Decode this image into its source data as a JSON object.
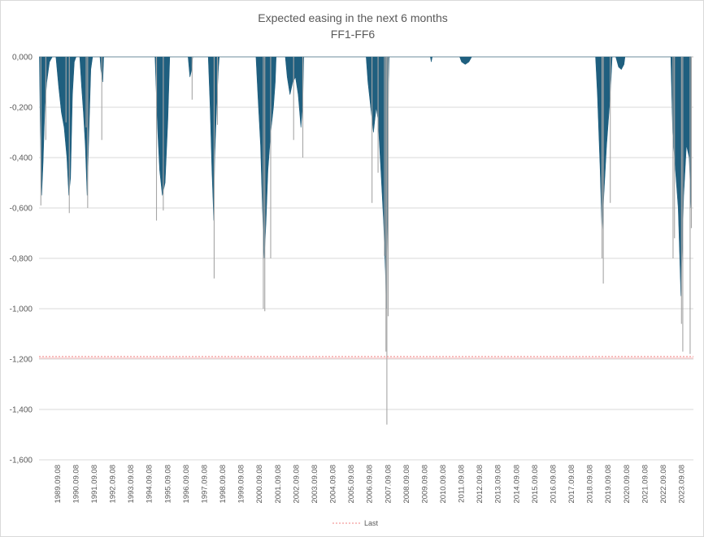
{
  "chart_data": {
    "type": "area",
    "title": "Expected easing in the next 6 months",
    "subtitle": "FF1-FF6",
    "xlabel": "",
    "ylabel": "",
    "ylim": [
      -1.6,
      0.0
    ],
    "grid": true,
    "legend_position": "bottom",
    "colors": {
      "area": "#1f5f7f",
      "spike": "#a6a6a6",
      "last": "#f4a6a6",
      "grid": "#d9d9d9"
    },
    "y_ticks": [
      "0,000",
      "-0,200",
      "-0,400",
      "-0,600",
      "-0,800",
      "-1,000",
      "-1,200",
      "-1,400",
      "-1,600"
    ],
    "x_ticks": [
      "1989.09.08",
      "1990.09.08",
      "1991.09.08",
      "1992.09.08",
      "1993.09.08",
      "1994.09.08",
      "1995.09.08",
      "1996.09.08",
      "1997.09.08",
      "1998.09.08",
      "1999.09.08",
      "2000.09.08",
      "2001.09.08",
      "2002.09.08",
      "2003.09.08",
      "2004.09.08",
      "2005.09.08",
      "2006.09.08",
      "2007.09.08",
      "2008.09.08",
      "2009.09.08",
      "2010.09.08",
      "2011.09.08",
      "2012.09.08",
      "2013.09.08",
      "2014.09.08",
      "2015.09.08",
      "2016.09.08",
      "2017.09.08",
      "2018.09.08",
      "2019.09.08",
      "2020.09.08",
      "2021.09.08",
      "2022.09.08",
      "2023.09.08"
    ],
    "series": [
      {
        "name": "",
        "kind": "area",
        "points": [
          [
            1988.7,
            0
          ],
          [
            1988.75,
            -0.3
          ],
          [
            1988.82,
            -0.55
          ],
          [
            1988.9,
            -0.42
          ],
          [
            1989.0,
            -0.2
          ],
          [
            1989.1,
            -0.1
          ],
          [
            1989.25,
            -0.02
          ],
          [
            1989.4,
            0
          ],
          [
            1989.6,
            0
          ],
          [
            1989.75,
            -0.12
          ],
          [
            1989.9,
            -0.22
          ],
          [
            1990.05,
            -0.28
          ],
          [
            1990.2,
            -0.4
          ],
          [
            1990.3,
            -0.55
          ],
          [
            1990.4,
            -0.48
          ],
          [
            1990.5,
            -0.15
          ],
          [
            1990.6,
            -0.02
          ],
          [
            1990.7,
            0
          ],
          [
            1990.9,
            0
          ],
          [
            1991.0,
            -0.12
          ],
          [
            1991.1,
            -0.22
          ],
          [
            1991.2,
            -0.35
          ],
          [
            1991.3,
            -0.55
          ],
          [
            1991.4,
            -0.3
          ],
          [
            1991.5,
            -0.05
          ],
          [
            1991.6,
            0
          ],
          [
            1992.0,
            0
          ],
          [
            1992.05,
            -0.05
          ],
          [
            1992.15,
            -0.1
          ],
          [
            1992.2,
            0
          ],
          [
            1995.0,
            0
          ],
          [
            1995.05,
            -0.1
          ],
          [
            1995.15,
            -0.3
          ],
          [
            1995.25,
            -0.45
          ],
          [
            1995.4,
            -0.55
          ],
          [
            1995.55,
            -0.5
          ],
          [
            1995.7,
            -0.25
          ],
          [
            1995.8,
            0
          ],
          [
            1996.8,
            0
          ],
          [
            1996.9,
            -0.08
          ],
          [
            1997.0,
            -0.05
          ],
          [
            1997.05,
            0
          ],
          [
            1997.9,
            0
          ],
          [
            1998.0,
            -0.2
          ],
          [
            1998.1,
            -0.45
          ],
          [
            1998.2,
            -0.65
          ],
          [
            1998.25,
            -0.4
          ],
          [
            1998.35,
            -0.2
          ],
          [
            1998.45,
            -0.05
          ],
          [
            1998.5,
            0
          ],
          [
            2000.5,
            0
          ],
          [
            2000.6,
            -0.15
          ],
          [
            2000.75,
            -0.35
          ],
          [
            2000.85,
            -0.6
          ],
          [
            2000.95,
            -0.8
          ],
          [
            2001.05,
            -0.65
          ],
          [
            2001.15,
            -0.45
          ],
          [
            2001.3,
            -0.3
          ],
          [
            2001.45,
            -0.2
          ],
          [
            2001.55,
            -0.1
          ],
          [
            2001.6,
            0
          ],
          [
            2002.1,
            0
          ],
          [
            2002.2,
            -0.08
          ],
          [
            2002.35,
            -0.15
          ],
          [
            2002.5,
            -0.1
          ],
          [
            2002.65,
            -0.08
          ],
          [
            2002.8,
            -0.15
          ],
          [
            2002.95,
            -0.28
          ],
          [
            2003.05,
            -0.18
          ],
          [
            2003.1,
            0
          ],
          [
            2006.5,
            0
          ],
          [
            2006.6,
            -0.1
          ],
          [
            2006.75,
            -0.2
          ],
          [
            2006.9,
            -0.3
          ],
          [
            2007.05,
            -0.2
          ],
          [
            2007.15,
            -0.25
          ],
          [
            2007.3,
            -0.45
          ],
          [
            2007.45,
            -0.65
          ],
          [
            2007.55,
            -0.85
          ],
          [
            2007.6,
            -1.0
          ],
          [
            2007.68,
            -0.6
          ],
          [
            2007.72,
            -0.1
          ],
          [
            2007.75,
            0
          ],
          [
            2010.0,
            0
          ],
          [
            2010.05,
            -0.02
          ],
          [
            2010.1,
            0
          ],
          [
            2011.6,
            0
          ],
          [
            2011.7,
            -0.02
          ],
          [
            2011.9,
            -0.03
          ],
          [
            2012.1,
            -0.02
          ],
          [
            2012.25,
            0
          ],
          [
            2019.0,
            0
          ],
          [
            2019.1,
            -0.15
          ],
          [
            2019.25,
            -0.45
          ],
          [
            2019.35,
            -0.7
          ],
          [
            2019.45,
            -0.55
          ],
          [
            2019.6,
            -0.35
          ],
          [
            2019.75,
            -0.2
          ],
          [
            2019.85,
            -0.08
          ],
          [
            2019.9,
            0
          ],
          [
            2020.1,
            0
          ],
          [
            2020.25,
            -0.04
          ],
          [
            2020.4,
            -0.05
          ],
          [
            2020.55,
            -0.03
          ],
          [
            2020.6,
            0
          ],
          [
            2023.1,
            0
          ],
          [
            2023.2,
            -0.3
          ],
          [
            2023.35,
            -0.45
          ],
          [
            2023.5,
            -0.6
          ],
          [
            2023.65,
            -0.95
          ],
          [
            2023.8,
            -0.55
          ],
          [
            2023.95,
            -0.35
          ],
          [
            2024.1,
            -0.4
          ],
          [
            2024.2,
            -0.6
          ]
        ]
      },
      {
        "name": "",
        "kind": "spikes",
        "points": [
          [
            1988.78,
            -0.59
          ],
          [
            1989.05,
            -0.33
          ],
          [
            1990.15,
            -0.26
          ],
          [
            1990.33,
            -0.62
          ],
          [
            1991.25,
            -0.28
          ],
          [
            1991.33,
            -0.6
          ],
          [
            1992.1,
            -0.33
          ],
          [
            1995.08,
            -0.65
          ],
          [
            1995.45,
            -0.61
          ],
          [
            1997.02,
            -0.17
          ],
          [
            1998.22,
            -0.88
          ],
          [
            1998.4,
            -0.27
          ],
          [
            2000.9,
            -1.0
          ],
          [
            2000.98,
            -1.01
          ],
          [
            2001.3,
            -0.8
          ],
          [
            2002.55,
            -0.33
          ],
          [
            2003.05,
            -0.4
          ],
          [
            2006.82,
            -0.58
          ],
          [
            2007.15,
            -0.46
          ],
          [
            2007.5,
            -0.79
          ],
          [
            2007.58,
            -1.17
          ],
          [
            2007.63,
            -1.46
          ],
          [
            2007.7,
            -1.03
          ],
          [
            2019.35,
            -0.8
          ],
          [
            2019.42,
            -0.9
          ],
          [
            2019.8,
            -0.58
          ],
          [
            2023.22,
            -0.8
          ],
          [
            2023.3,
            -0.72
          ],
          [
            2023.68,
            -1.06
          ],
          [
            2023.75,
            -1.17
          ],
          [
            2024.15,
            -1.18
          ],
          [
            2024.22,
            -0.68
          ]
        ]
      },
      {
        "name": "Last",
        "kind": "line",
        "value": -1.19
      }
    ]
  }
}
